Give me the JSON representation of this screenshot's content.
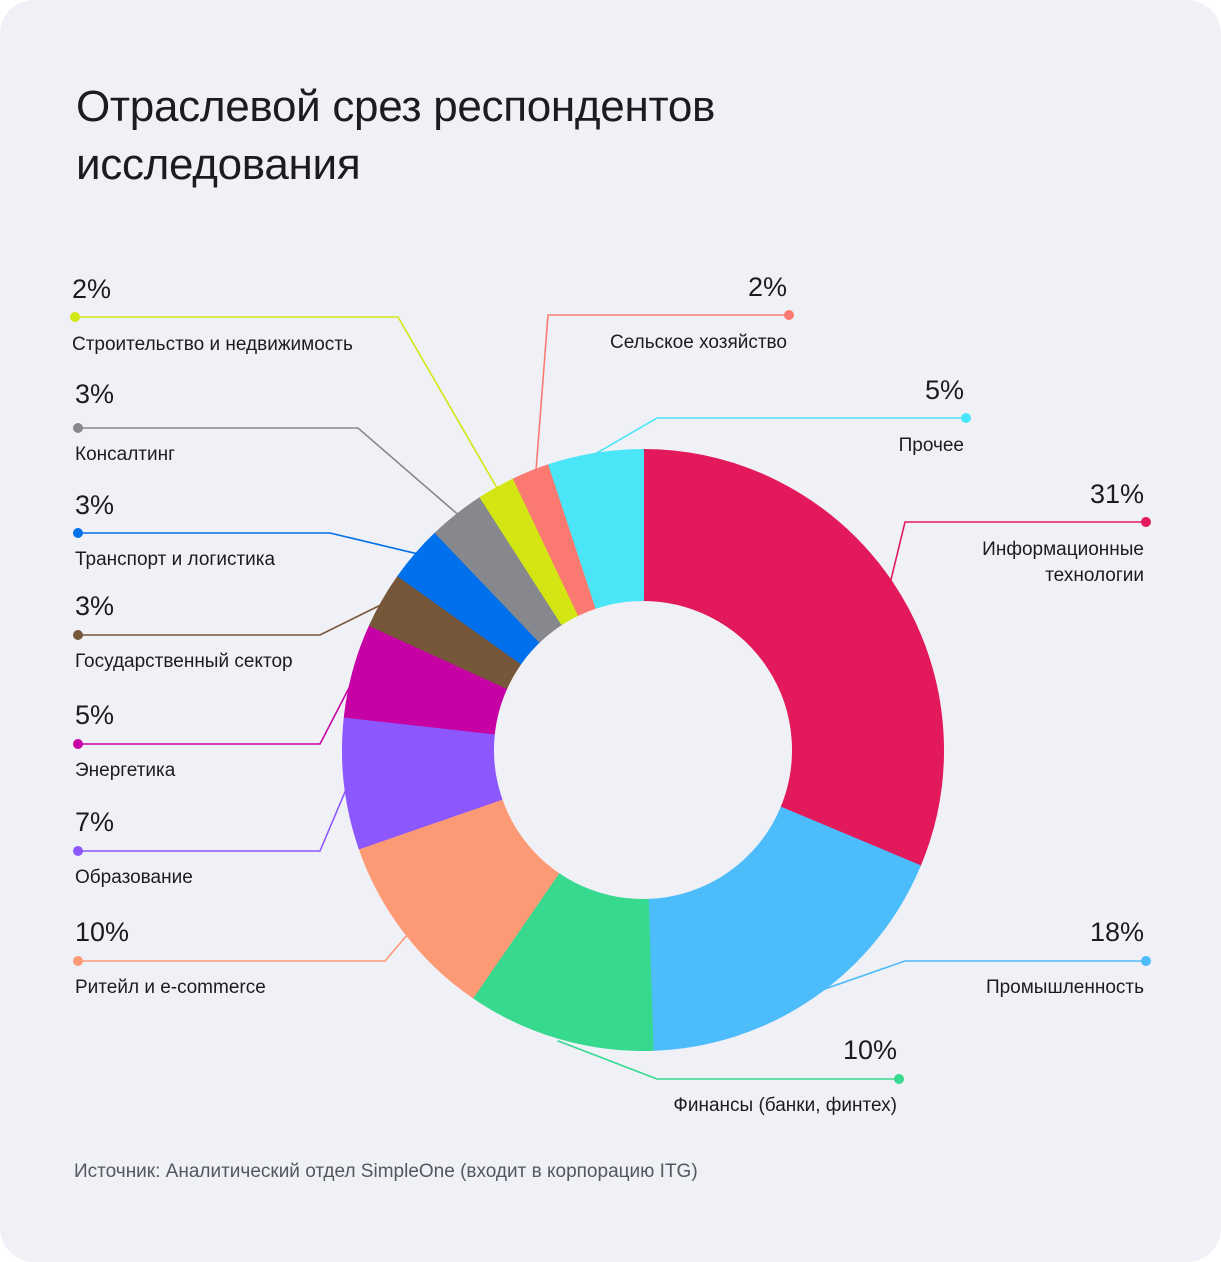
{
  "title_lines": [
    "Отраслевой срез респондентов",
    "исследования"
  ],
  "source": "Источник: Аналитический отдел SimpleOne (входит в корпорацию ITG)",
  "chart_data": {
    "type": "pie",
    "variant": "donut",
    "title": "Отраслевой срез респондентов исследования",
    "unit": "%",
    "slices": [
      {
        "label": "Информационные технологии",
        "label_lines": [
          "Информационные",
          "технологии"
        ],
        "value": 31,
        "value_label": "31%",
        "color": "#e2195a"
      },
      {
        "label": "Промышленность",
        "label_lines": [
          "Промышленность"
        ],
        "value": 18,
        "value_label": "18%",
        "color": "#4dbcfa"
      },
      {
        "label": "Финансы (банки, финтех)",
        "label_lines": [
          "Финансы (банки, финтех)"
        ],
        "value": 10,
        "value_label": "10%",
        "color": "#36d98e"
      },
      {
        "label": "Ритейл и e-commerce",
        "label_lines": [
          "Ритейл и e-commerce"
        ],
        "value": 10,
        "value_label": "10%",
        "color": "#fd9a76"
      },
      {
        "label": "Образование",
        "label_lines": [
          "Образование"
        ],
        "value": 7,
        "value_label": "7%",
        "color": "#8c58fd"
      },
      {
        "label": "Энергетика",
        "label_lines": [
          "Энергетика"
        ],
        "value": 5,
        "value_label": "5%",
        "color": "#c702a4"
      },
      {
        "label": "Государственный сектор",
        "label_lines": [
          "Государственный сектор"
        ],
        "value": 3,
        "value_label": "3%",
        "color": "#76573a"
      },
      {
        "label": "Транспорт и логистика",
        "label_lines": [
          "Транспорт и логистика"
        ],
        "value": 3,
        "value_label": "3%",
        "color": "#0070ec"
      },
      {
        "label": "Консалтинг",
        "label_lines": [
          "Консалтинг"
        ],
        "value": 3,
        "value_label": "3%",
        "color": "#87888d"
      },
      {
        "label": "Строительство и недвижимость",
        "label_lines": [
          "Строительство и недвижимость"
        ],
        "value": 2,
        "value_label": "2%",
        "color": "#d3e613"
      },
      {
        "label": "Сельское хозяйство",
        "label_lines": [
          "Сельское хозяйство"
        ],
        "value": 2,
        "value_label": "2%",
        "color": "#fa7a72"
      },
      {
        "label": "Прочее",
        "label_lines": [
          "Прочее"
        ],
        "value": 5,
        "value_label": "5%",
        "color": "#4ae6f8"
      }
    ]
  }
}
